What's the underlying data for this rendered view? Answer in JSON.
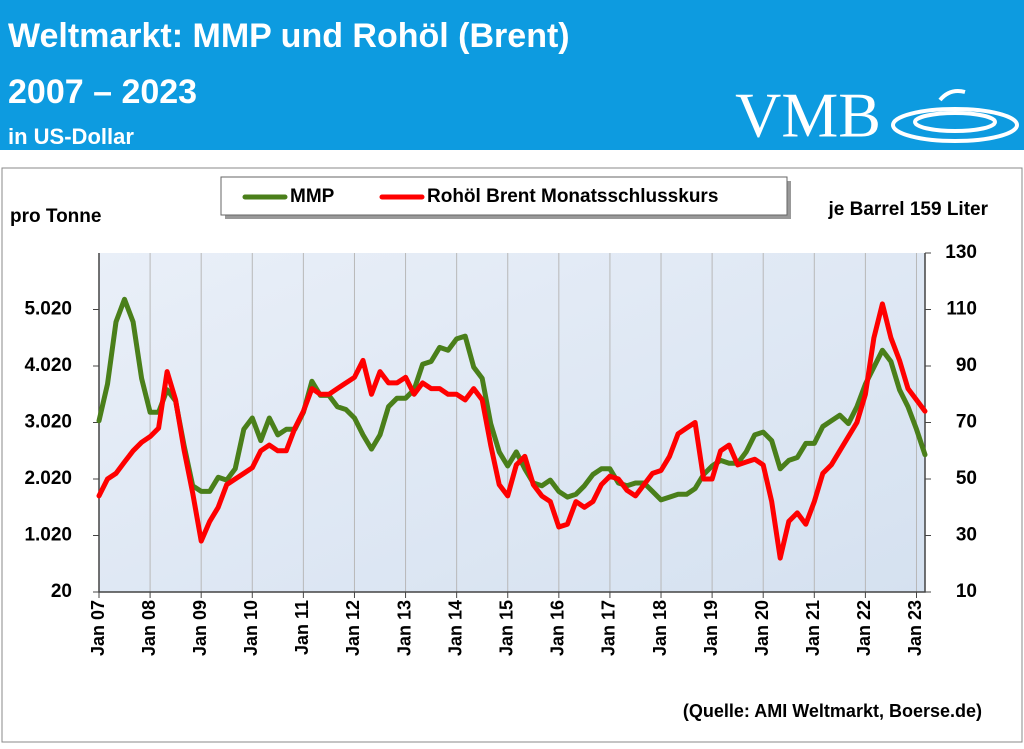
{
  "chart_data": {
    "type": "line",
    "title": [
      "Weltmarkt: MMP und Rohöl (Brent)",
      "2007 – 2023"
    ],
    "subtitle": "in US-Dollar",
    "logo": "VMB",
    "ylabel": "pro Tonne",
    "y2label": "je Barrel 159 Liter",
    "source": "(Quelle: AMI Weltmarkt, Boerse.de)",
    "xlim": [
      "2007-01",
      "2023-03"
    ],
    "xticks": [
      {
        "value": "2007-01",
        "label": "Jan 07"
      },
      {
        "value": "2008-01",
        "label": "Jan 08"
      },
      {
        "value": "2009-01",
        "label": "Jan 09"
      },
      {
        "value": "2010-01",
        "label": "Jan 10"
      },
      {
        "value": "2011-01",
        "label": "Jan 11"
      },
      {
        "value": "2012-01",
        "label": "Jan 12"
      },
      {
        "value": "2013-01",
        "label": "Jan 13"
      },
      {
        "value": "2014-01",
        "label": "Jan 14"
      },
      {
        "value": "2015-01",
        "label": "Jan 15"
      },
      {
        "value": "2016-01",
        "label": "Jan 16"
      },
      {
        "value": "2017-01",
        "label": "Jan 17"
      },
      {
        "value": "2018-01",
        "label": "Jan 18"
      },
      {
        "value": "2019-01",
        "label": "Jan 19"
      },
      {
        "value": "2020-01",
        "label": "Jan 20"
      },
      {
        "value": "2021-01",
        "label": "Jan 21"
      },
      {
        "value": "2022-01",
        "label": "Jan 22"
      },
      {
        "value": "2023-01",
        "label": "Jan 23"
      }
    ],
    "ylim": [
      20,
      6020
    ],
    "yticks": [
      20,
      {
        "value": 1020,
        "label": "1.020"
      },
      {
        "value": 2020,
        "label": "2.020"
      },
      {
        "value": 3020,
        "label": "3.020"
      },
      {
        "value": 4020,
        "label": "4.020"
      },
      {
        "value": 5020,
        "label": "5.020"
      }
    ],
    "y2lim": [
      10,
      130
    ],
    "y2ticks": [
      10,
      30,
      50,
      70,
      90,
      110,
      130
    ],
    "grid": true,
    "x": [
      "2007-01",
      "2007-03",
      "2007-05",
      "2007-07",
      "2007-09",
      "2007-11",
      "2008-01",
      "2008-03",
      "2008-05",
      "2008-07",
      "2008-09",
      "2008-11",
      "2009-01",
      "2009-03",
      "2009-05",
      "2009-07",
      "2009-09",
      "2009-11",
      "2010-01",
      "2010-03",
      "2010-05",
      "2010-07",
      "2010-09",
      "2010-11",
      "2011-01",
      "2011-03",
      "2011-05",
      "2011-07",
      "2011-09",
      "2011-11",
      "2012-01",
      "2012-03",
      "2012-05",
      "2012-07",
      "2012-09",
      "2012-11",
      "2013-01",
      "2013-03",
      "2013-05",
      "2013-07",
      "2013-09",
      "2013-11",
      "2014-01",
      "2014-03",
      "2014-05",
      "2014-07",
      "2014-09",
      "2014-11",
      "2015-01",
      "2015-03",
      "2015-05",
      "2015-07",
      "2015-09",
      "2015-11",
      "2016-01",
      "2016-03",
      "2016-05",
      "2016-07",
      "2016-09",
      "2016-11",
      "2017-01",
      "2017-03",
      "2017-05",
      "2017-07",
      "2017-09",
      "2017-11",
      "2018-01",
      "2018-03",
      "2018-05",
      "2018-07",
      "2018-09",
      "2018-11",
      "2019-01",
      "2019-03",
      "2019-05",
      "2019-07",
      "2019-09",
      "2019-11",
      "2020-01",
      "2020-03",
      "2020-05",
      "2020-07",
      "2020-09",
      "2020-11",
      "2021-01",
      "2021-03",
      "2021-05",
      "2021-07",
      "2021-09",
      "2021-11",
      "2022-01",
      "2022-03",
      "2022-05",
      "2022-07",
      "2022-09",
      "2022-11",
      "2023-01",
      "2023-03"
    ],
    "series": [
      {
        "name": "MMP",
        "color": "#4a7f1a",
        "axis": "y",
        "values": [
          3050,
          3700,
          4800,
          5200,
          4800,
          3800,
          3200,
          3200,
          3600,
          3400,
          2600,
          1900,
          1800,
          1800,
          2050,
          2000,
          2200,
          2900,
          3100,
          2700,
          3100,
          2800,
          2900,
          2900,
          3200,
          3750,
          3500,
          3500,
          3300,
          3250,
          3100,
          2800,
          2550,
          2800,
          3300,
          3450,
          3450,
          3600,
          4050,
          4100,
          4350,
          4300,
          4500,
          4550,
          4000,
          3800,
          3000,
          2500,
          2250,
          2500,
          2200,
          1950,
          1900,
          2000,
          1800,
          1700,
          1750,
          1900,
          2100,
          2200,
          2200,
          1950,
          1900,
          1950,
          1950,
          1800,
          1650,
          1700,
          1750,
          1750,
          1850,
          2100,
          2250,
          2350,
          2300,
          2300,
          2500,
          2800,
          2850,
          2700,
          2200,
          2350,
          2400,
          2650,
          2650,
          2950,
          3050,
          3150,
          3000,
          3300,
          3700,
          4000,
          4300,
          4100,
          3600,
          3300,
          2900,
          2450
        ]
      },
      {
        "name": "Rohöl Brent Monatsschlusskurs",
        "color": "#ff0000",
        "axis": "y2",
        "values": [
          44,
          50,
          52,
          56,
          60,
          63,
          65,
          68,
          88,
          78,
          60,
          45,
          28,
          35,
          40,
          48,
          50,
          52,
          54,
          60,
          62,
          60,
          60,
          68,
          74,
          82,
          80,
          80,
          82,
          84,
          86,
          92,
          80,
          88,
          84,
          84,
          86,
          80,
          84,
          82,
          82,
          80,
          80,
          78,
          82,
          78,
          62,
          48,
          44,
          55,
          58,
          48,
          44,
          42,
          33,
          34,
          42,
          40,
          42,
          48,
          51,
          50,
          46,
          44,
          48,
          52,
          53,
          58,
          66,
          68,
          70,
          50,
          50,
          60,
          62,
          55,
          56,
          57,
          55,
          42,
          22,
          35,
          38,
          34,
          42,
          52,
          55,
          60,
          65,
          70,
          80,
          100,
          112,
          100,
          92,
          82,
          78,
          74
        ]
      }
    ]
  }
}
